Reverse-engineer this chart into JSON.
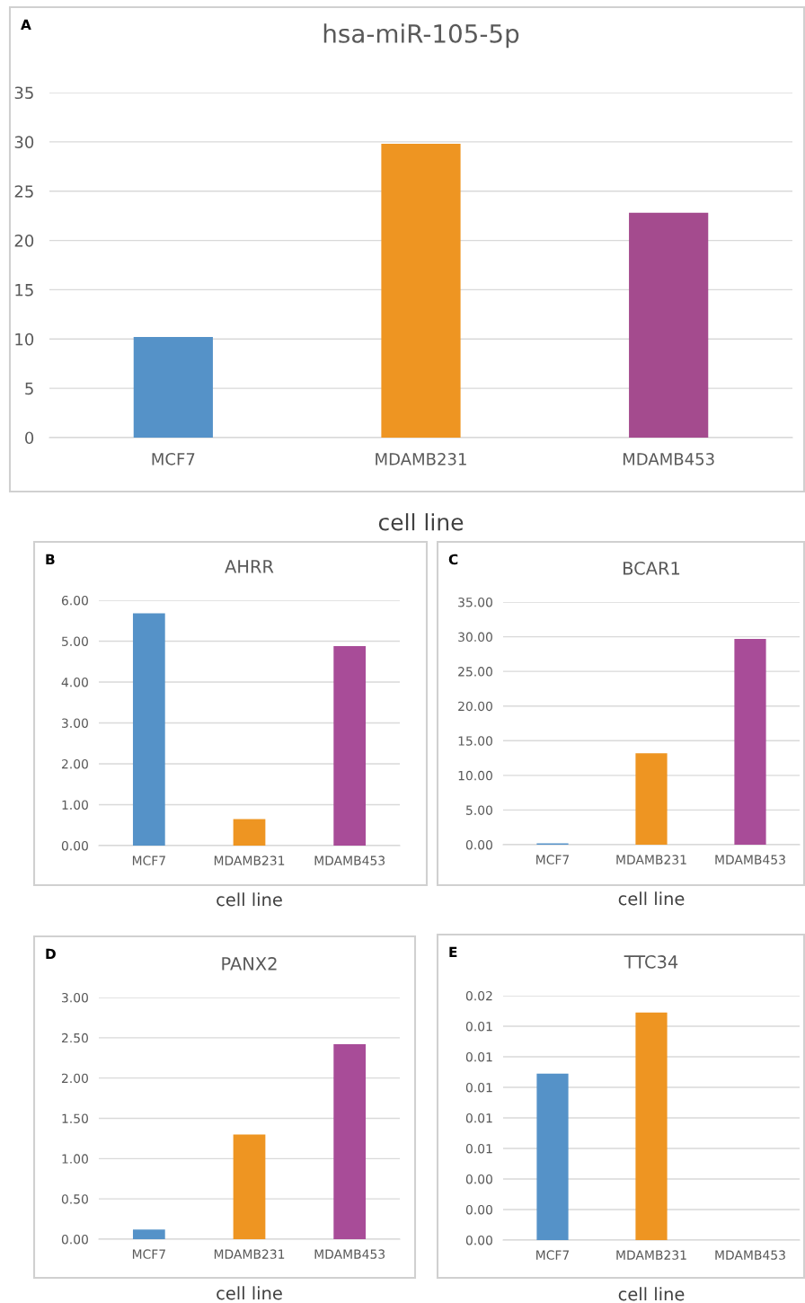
{
  "chart_data": [
    {
      "type": "bar",
      "title": "hsa-miR-105-5p",
      "xlabel": "cell line",
      "annotations": [
        "A"
      ],
      "categories": [
        "MCF7",
        "MDAMB231",
        "MDAMB453"
      ],
      "values": [
        10.2,
        29.8,
        22.8
      ],
      "colors": [
        "#5592c8",
        "#ee9522",
        "#a44b8e"
      ],
      "ylim": [
        0,
        35
      ],
      "yticks": [
        0,
        5,
        10,
        15,
        20,
        25,
        30,
        35
      ],
      "grid": "y"
    },
    {
      "type": "bar",
      "title": "AHRR",
      "xlabel": "cell line",
      "annotations": [
        "B"
      ],
      "categories": [
        "MCF7",
        "MDAMB231",
        "MDAMB453"
      ],
      "values": [
        5.68,
        0.65,
        4.88
      ],
      "colors": [
        "#5592c8",
        "#ee9522",
        "#a84c98"
      ],
      "ylim": [
        0,
        6
      ],
      "yticks": [
        {
          "value": 0,
          "label": "0.00"
        },
        {
          "value": 1,
          "label": "1.00"
        },
        {
          "value": 2,
          "label": "2.00"
        },
        {
          "value": 3,
          "label": "3.00"
        },
        {
          "value": 4,
          "label": "4.00"
        },
        {
          "value": 5,
          "label": "5.00"
        },
        {
          "value": 6,
          "label": "6.00"
        }
      ],
      "grid": "y"
    },
    {
      "type": "bar",
      "title": "BCAR1",
      "xlabel": "cell line",
      "annotations": [
        "C"
      ],
      "categories": [
        "MCF7",
        "MDAMB231",
        "MDAMB453"
      ],
      "values": [
        0.2,
        13.2,
        29.7
      ],
      "colors": [
        "#5592c8",
        "#ee9522",
        "#a84c98"
      ],
      "ylim": [
        0,
        35
      ],
      "yticks": [
        {
          "value": 0,
          "label": "0.00"
        },
        {
          "value": 5,
          "label": "5.00"
        },
        {
          "value": 10,
          "label": "10.00"
        },
        {
          "value": 15,
          "label": "15.00"
        },
        {
          "value": 20,
          "label": "20.00"
        },
        {
          "value": 25,
          "label": "25.00"
        },
        {
          "value": 30,
          "label": "30.00"
        },
        {
          "value": 35,
          "label": "35.00"
        }
      ],
      "grid": "y"
    },
    {
      "type": "bar",
      "title": "PANX2",
      "xlabel": "cell line",
      "annotations": [
        "D"
      ],
      "categories": [
        "MCF7",
        "MDAMB231",
        "MDAMB453"
      ],
      "values": [
        0.12,
        1.3,
        2.42
      ],
      "colors": [
        "#5592c8",
        "#ee9522",
        "#a84c98"
      ],
      "ylim": [
        0,
        3
      ],
      "yticks": [
        {
          "value": 0,
          "label": "0.00"
        },
        {
          "value": 0.5,
          "label": "0.50"
        },
        {
          "value": 1,
          "label": "1.00"
        },
        {
          "value": 1.5,
          "label": "1.50"
        },
        {
          "value": 2,
          "label": "2.00"
        },
        {
          "value": 2.5,
          "label": "2.50"
        },
        {
          "value": 3,
          "label": "3.00"
        }
      ],
      "grid": "y"
    },
    {
      "type": "bar",
      "title": "TTC34",
      "xlabel": "cell line",
      "annotations": [
        "E"
      ],
      "categories": [
        "MCF7",
        "MDAMB231",
        "MDAMB453"
      ],
      "values": [
        0.0109,
        0.0149,
        0
      ],
      "colors": [
        "#5592c8",
        "#ee9522",
        "#a84c98"
      ],
      "ylim": [
        0,
        0.016
      ],
      "yticks": [
        {
          "value": 0,
          "label": "0.00"
        },
        {
          "value": 0.002,
          "label": "0.00"
        },
        {
          "value": 0.004,
          "label": "0.00"
        },
        {
          "value": 0.006,
          "label": "0.01"
        },
        {
          "value": 0.008,
          "label": "0.01"
        },
        {
          "value": 0.01,
          "label": "0.01"
        },
        {
          "value": 0.012,
          "label": "0.01"
        },
        {
          "value": 0.014,
          "label": "0.01"
        },
        {
          "value": 0.016,
          "label": "0.02"
        }
      ],
      "grid": "y"
    }
  ]
}
